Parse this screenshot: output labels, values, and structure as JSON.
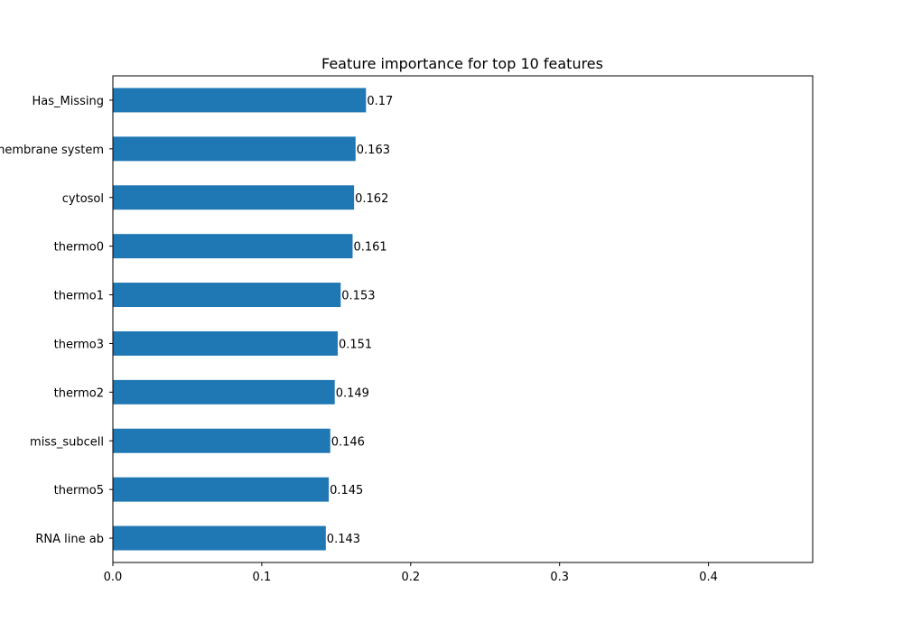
{
  "chart_data": {
    "type": "bar",
    "orientation": "horizontal",
    "title": "Feature importance for top 10 features",
    "xlabel": "",
    "ylabel": "",
    "categories": [
      "Has_Missing",
      "membrane system",
      "cytosol",
      "thermo0",
      "thermo1",
      "thermo3",
      "thermo2",
      "miss_subcell",
      "thermo5",
      "RNA line ab"
    ],
    "values": [
      0.17,
      0.163,
      0.162,
      0.161,
      0.153,
      0.151,
      0.149,
      0.146,
      0.145,
      0.143
    ],
    "value_labels": [
      "0.17",
      "0.163",
      "0.162",
      "0.161",
      "0.153",
      "0.151",
      "0.149",
      "0.146",
      "0.145",
      "0.143"
    ],
    "xlim": [
      0,
      0.47
    ],
    "xticks": [
      0,
      0.1,
      0.2,
      0.3,
      0.4
    ],
    "xtick_labels": [
      "0.0",
      "0.1",
      "0.2",
      "0.3",
      "0.4"
    ],
    "grid": false,
    "legend": "none",
    "bar_color": "#1f77b4"
  }
}
